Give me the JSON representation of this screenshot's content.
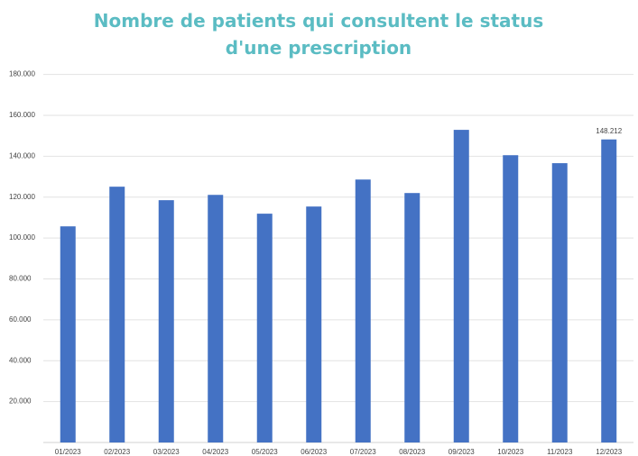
{
  "chart_data": {
    "type": "bar",
    "title": "Nombre de patients qui consultent le status d'une prescription",
    "categories": [
      "01/2023",
      "02/2023",
      "03/2023",
      "04/2023",
      "05/2023",
      "06/2023",
      "07/2023",
      "08/2023",
      "09/2023",
      "10/2023",
      "11/2023",
      "12/2023"
    ],
    "values": [
      105700,
      125100,
      118500,
      121100,
      111900,
      115400,
      128600,
      122000,
      152900,
      140500,
      136600,
      148212
    ],
    "value_labels": [
      null,
      null,
      null,
      null,
      null,
      null,
      null,
      null,
      null,
      null,
      null,
      "148.212"
    ],
    "color": "#4472c4",
    "ylim": [
      0,
      180000
    ],
    "yticks": [
      {
        "value": 20000,
        "label": "20.000"
      },
      {
        "value": 40000,
        "label": "40.000"
      },
      {
        "value": 60000,
        "label": "60.000"
      },
      {
        "value": 80000,
        "label": "80.000"
      },
      {
        "value": 100000,
        "label": "100.000"
      },
      {
        "value": 120000,
        "label": "120.000"
      },
      {
        "value": 140000,
        "label": "140.000"
      },
      {
        "value": 160000,
        "label": "160.000"
      },
      {
        "value": 180000,
        "label": "180.000"
      }
    ],
    "grid": true
  }
}
